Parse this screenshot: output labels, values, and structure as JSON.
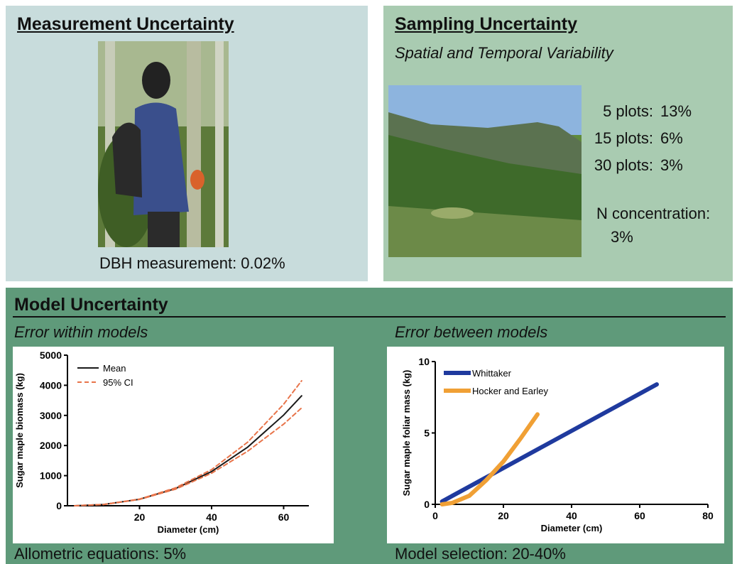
{
  "measurement": {
    "title": "Measurement Uncertainty",
    "caption": "DBH measurement: 0.02%"
  },
  "sampling": {
    "title": "Sampling Uncertainty",
    "subtitle": "Spatial and Temporal Variability",
    "rows": [
      {
        "label": "5 plots:",
        "value": "13%"
      },
      {
        "label": "15 plots:",
        "value": "6%"
      },
      {
        "label": "30 plots:",
        "value": "3%"
      }
    ],
    "concentration": {
      "label": "N concentration:",
      "value": "3%"
    }
  },
  "model": {
    "title": "Model Uncertainty",
    "left_heading": "Error within models",
    "right_heading": "Error between models",
    "left_caption": "Allometric equations: 5%",
    "right_caption": "Model selection: 20-40%"
  },
  "chart_data": [
    {
      "type": "line",
      "x_label": "Diameter (cm)",
      "y_label": "Sugar maple biomass (kg)",
      "x": [
        2,
        10,
        20,
        30,
        40,
        50,
        60,
        65
      ],
      "series": [
        {
          "name": "Mean",
          "color": "#1a1a1a",
          "style": "solid",
          "values": [
            1,
            41,
            216,
            571,
            1136,
            1945,
            3011,
            3650
          ]
        },
        {
          "name": "95% CI",
          "color": "#e8744a",
          "style": "dashed",
          "upper": [
            1,
            42,
            222,
            595,
            1200,
            2110,
            3370,
            4150
          ],
          "lower": [
            1,
            40,
            210,
            550,
            1080,
            1810,
            2710,
            3250
          ]
        }
      ],
      "xlim": [
        0,
        67
      ],
      "xticks": [
        20,
        40,
        60
      ],
      "ylim": [
        0,
        5000
      ],
      "yticks": [
        0,
        1000,
        2000,
        3000,
        4000,
        5000
      ],
      "legend": "upper left"
    },
    {
      "type": "line",
      "x_label": "Diameter (cm)",
      "y_label": "Sugar maple foliar mass (kg)",
      "series": [
        {
          "name": "Whittaker",
          "color": "#1f3a9e",
          "style": "solid",
          "x": [
            2,
            65
          ],
          "values": [
            0.2,
            8.4
          ]
        },
        {
          "name": "Hocker and Earley",
          "color": "#f0a035",
          "style": "solid",
          "x": [
            2,
            5,
            10,
            15,
            20,
            25,
            30
          ],
          "values": [
            0,
            0.1,
            0.6,
            1.7,
            3.0,
            4.6,
            6.3
          ]
        }
      ],
      "xlim": [
        0,
        80
      ],
      "xticks": [
        0,
        20,
        40,
        60,
        80
      ],
      "ylim": [
        0,
        10
      ],
      "yticks": [
        0,
        5,
        10
      ],
      "legend": "upper left"
    }
  ]
}
